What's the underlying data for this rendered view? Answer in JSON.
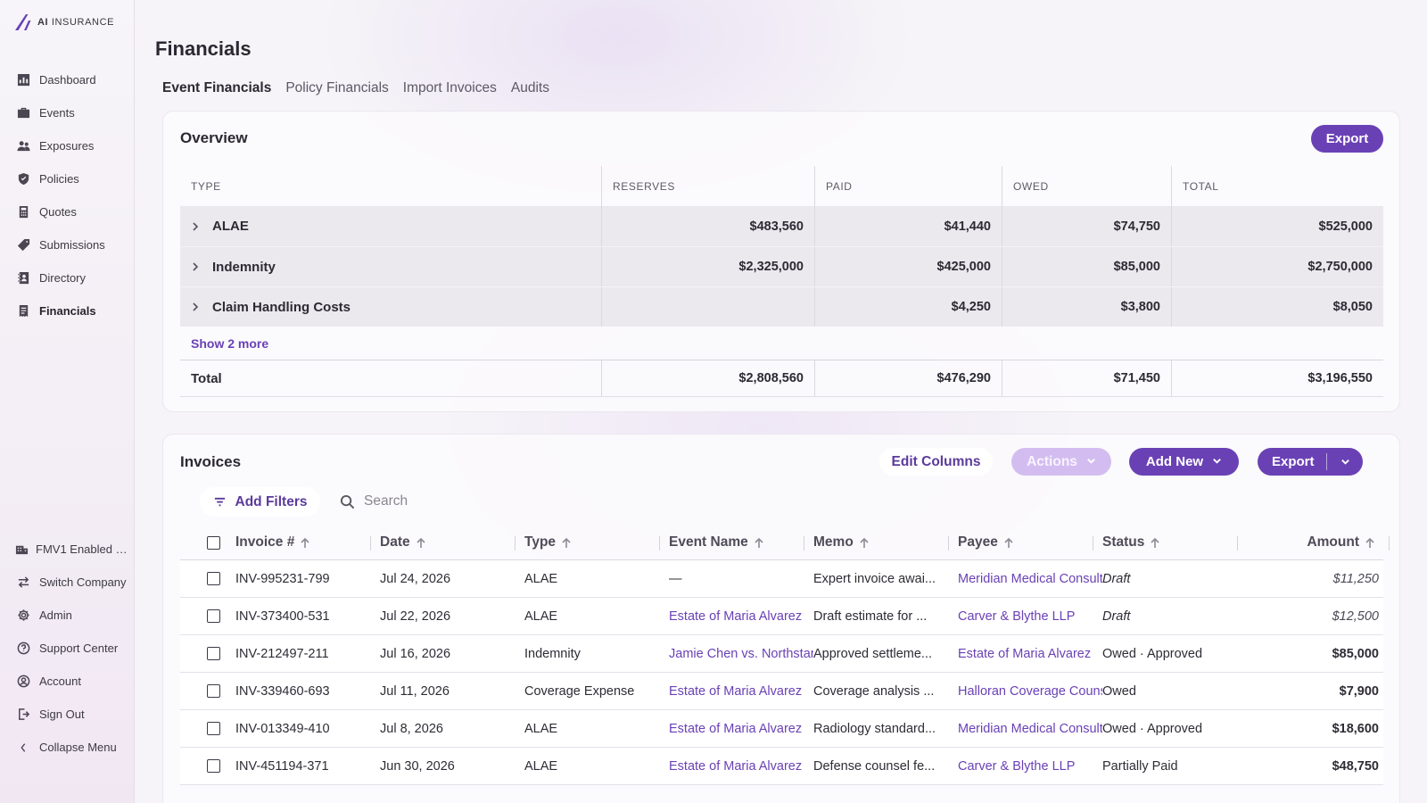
{
  "brand": {
    "name_bold": "AI",
    "name_rest": " INSURANCE"
  },
  "nav": [
    {
      "label": "Dashboard",
      "icon": "chart-icon"
    },
    {
      "label": "Events",
      "icon": "briefcase-icon"
    },
    {
      "label": "Exposures",
      "icon": "people-icon"
    },
    {
      "label": "Policies",
      "icon": "shield-check-icon"
    },
    {
      "label": "Quotes",
      "icon": "calculator-icon"
    },
    {
      "label": "Submissions",
      "icon": "tag-icon"
    },
    {
      "label": "Directory",
      "icon": "contacts-icon"
    },
    {
      "label": "Financials",
      "icon": "receipt-icon",
      "active": true
    }
  ],
  "bottom_nav": {
    "company": "FMV1 Enabled …",
    "switch_company": "Switch Company",
    "admin": "Admin",
    "support": "Support Center",
    "account": "Account",
    "sign_out": "Sign Out",
    "collapse": "Collapse Menu"
  },
  "page": {
    "title": "Financials"
  },
  "tabs": [
    "Event Financials",
    "Policy Financials",
    "Import Invoices",
    "Audits"
  ],
  "overview": {
    "title": "Overview",
    "export_label": "Export",
    "columns": [
      "TYPE",
      "RESERVES",
      "PAID",
      "OWED",
      "TOTAL"
    ],
    "rows": [
      {
        "type": "ALAE",
        "reserves": "$483,560",
        "paid": "$41,440",
        "owed": "$74,750",
        "total": "$525,000"
      },
      {
        "type": "Indemnity",
        "reserves": "$2,325,000",
        "paid": "$425,000",
        "owed": "$85,000",
        "total": "$2,750,000"
      },
      {
        "type": "Claim Handling Costs",
        "reserves": "",
        "paid": "$4,250",
        "owed": "$3,800",
        "total": "$8,050"
      }
    ],
    "show_more": "Show 2 more",
    "total": {
      "label": "Total",
      "reserves": "$2,808,560",
      "paid": "$476,290",
      "owed": "$71,450",
      "total": "$3,196,550"
    }
  },
  "invoices": {
    "title": "Invoices",
    "edit_columns": "Edit Columns",
    "actions": "Actions",
    "add_new": "Add New",
    "export": "Export",
    "add_filters": "Add Filters",
    "search_placeholder": "Search",
    "columns": [
      "Invoice #",
      "Date",
      "Type",
      "Event Name",
      "Memo",
      "Payee",
      "Status",
      "Amount"
    ],
    "rows": [
      {
        "invoice": "INV-995231-799",
        "date": "Jul 24, 2026",
        "type": "ALAE",
        "event": "—",
        "memo": "Expert invoice awai...",
        "payee": "Meridian Medical Consulting",
        "status": "Draft",
        "amount": "$11,250"
      },
      {
        "invoice": "INV-373400-531",
        "date": "Jul 22, 2026",
        "type": "ALAE",
        "event": "Estate of Maria Alvarez",
        "memo": "Draft estimate for ...",
        "payee": "Carver & Blythe LLP",
        "status": "Draft",
        "amount": "$12,500"
      },
      {
        "invoice": "INV-212497-211",
        "date": "Jul 16, 2026",
        "type": "Indemnity",
        "event": "Jamie Chen vs. Northstar",
        "memo": "Approved settleme...",
        "payee": "Estate of Maria Alvarez",
        "status": "Owed · Approved",
        "amount": "$85,000"
      },
      {
        "invoice": "INV-339460-693",
        "date": "Jul 11, 2026",
        "type": "Coverage Expense",
        "event": "Estate of Maria Alvarez",
        "memo": "Coverage analysis ...",
        "payee": "Halloran Coverage Counsel",
        "status": "Owed",
        "amount": "$7,900"
      },
      {
        "invoice": "INV-013349-410",
        "date": "Jul 8, 2026",
        "type": "ALAE",
        "event": "Estate of Maria Alvarez",
        "memo": "Radiology standard...",
        "payee": "Meridian Medical Consulting",
        "status": "Owed · Approved",
        "amount": "$18,600"
      },
      {
        "invoice": "INV-451194-371",
        "date": "Jun 30, 2026",
        "type": "ALAE",
        "event": "Estate of Maria Alvarez",
        "memo": "Defense counsel fe...",
        "payee": "Carver & Blythe LLP",
        "status": "Partially Paid",
        "amount": "$48,750"
      }
    ]
  },
  "colors": {
    "accent": "#6a41b5",
    "accent_light": "#d3bdf0",
    "link": "#6a41b5"
  }
}
